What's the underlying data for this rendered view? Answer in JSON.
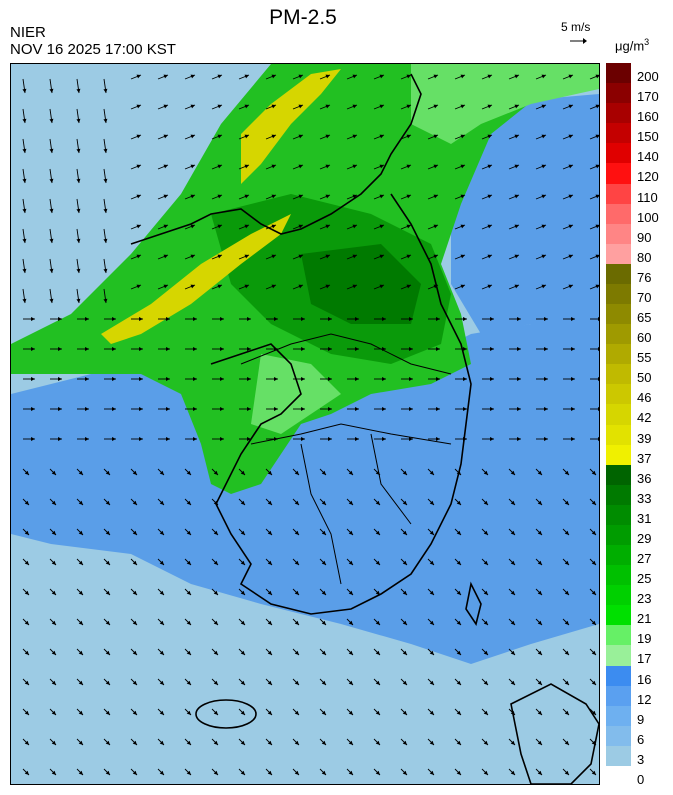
{
  "header": {
    "agency": "NIER",
    "timestamp": "NOV 16 2025 17:00 KST",
    "title": "PM-2.5",
    "wind_reference": "5 m/s",
    "unit": "μg/m",
    "unit_exp": "3"
  },
  "colorbar": {
    "labels": [
      "200",
      "170",
      "160",
      "150",
      "140",
      "120",
      "110",
      "100",
      "90",
      "80",
      "76",
      "70",
      "65",
      "60",
      "55",
      "50",
      "46",
      "42",
      "39",
      "37",
      "36",
      "33",
      "31",
      "29",
      "27",
      "25",
      "23",
      "21",
      "19",
      "17",
      "16",
      "12",
      "9",
      "6",
      "3",
      "0"
    ],
    "colors": [
      "#6b0000",
      "#8b0000",
      "#a80000",
      "#c40000",
      "#e00000",
      "#ff1010",
      "#ff4444",
      "#ff6a6a",
      "#ff8585",
      "#ffa0a0",
      "#6b6b00",
      "#7d7a00",
      "#8e8a00",
      "#9f9a00",
      "#b0aa00",
      "#c0ba00",
      "#ccc800",
      "#d6d600",
      "#e2e200",
      "#f0f000",
      "#006400",
      "#007a00",
      "#008c00",
      "#009c00",
      "#00ae00",
      "#00c000",
      "#00d000",
      "#00e000",
      "#66f066",
      "#99f099",
      "#3c8cf0",
      "#5aa0f0",
      "#6eb0f0",
      "#82bcec",
      "#9ccbe4"
    ]
  },
  "map": {
    "colors": {
      "low": "#9ccbe4",
      "blue": "#5a9ee8",
      "blue_dark": "#3c8cf0",
      "green_light": "#66e066",
      "green": "#22c022",
      "green_dark": "#0a9a0a",
      "green_deep": "#007a00",
      "yellow": "#d6d600"
    },
    "wind_field": "northerly-westerly"
  }
}
